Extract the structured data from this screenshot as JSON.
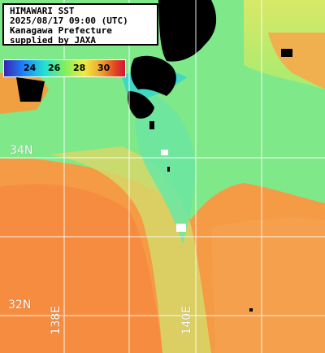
{
  "title": {
    "lines": [
      "HIMAWARI SST",
      "2025/08/17 09:00 (UTC)",
      "Kanagawa Prefecture",
      "supplied by JAXA"
    ]
  },
  "colorbar": {
    "ticks": [
      "24",
      "26",
      "28",
      "30"
    ],
    "colors": [
      "#3a1fb0",
      "#1a8cff",
      "#24e0d0",
      "#7ef060",
      "#f0ec40",
      "#f0a030",
      "#e04020",
      "#d01040"
    ]
  },
  "grid": {
    "lat_labels": [
      "34N",
      "32N"
    ],
    "lon_labels": [
      "138E",
      "140E"
    ]
  },
  "colors": {
    "land": "#000000",
    "cool_water": "#5ee08a",
    "warm_water": "#f59442",
    "grid_line": "#ffffff"
  }
}
